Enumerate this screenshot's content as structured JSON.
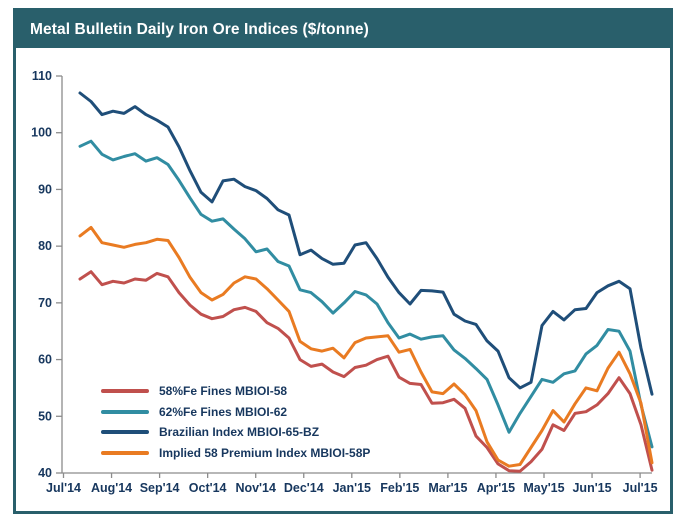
{
  "title": "Metal Bulletin Daily Iron Ore Indices ($/tonne)",
  "colors": {
    "frame_teal": "#295F6B",
    "axis_text": "#17375E",
    "axis_line": "#8C8C8C",
    "background": "#FFFFFF"
  },
  "chart_data": {
    "type": "line",
    "title": "Metal Bulletin Daily Iron Ore Indices ($/tonne)",
    "x_axis": {
      "tick_labels": [
        "Jul'14",
        "Aug'14",
        "Sep'14",
        "Oct'14",
        "Nov'14",
        "Dec'14",
        "Jan'15",
        "Feb'15",
        "Mar'15",
        "Apr'15",
        "May'15",
        "Jun'15",
        "Jul'15"
      ],
      "note": "daily indices, early July 2014 through early July 2015"
    },
    "y_axis": {
      "min": 40,
      "max": 110,
      "tick_step": 10,
      "tick_labels": [
        "40",
        "50",
        "60",
        "70",
        "80",
        "90",
        "100",
        "110"
      ],
      "unit": "$/tonne"
    },
    "grid": false,
    "legend_position": "inside lower-left",
    "sampling": "weekly samples read from chart, 53 points per series (week 0 = ~Jul 7 2014, week 52 = ~Jul 7 2015)",
    "series": [
      {
        "name": "58%Fe Fines MBIOI-58",
        "color": "#C0504D",
        "values": [
          74.2,
          75.5,
          73.2,
          73.8,
          73.5,
          74.2,
          74.0,
          75.2,
          74.6,
          71.8,
          69.6,
          68.0,
          67.2,
          67.6,
          68.8,
          69.2,
          68.5,
          66.5,
          65.5,
          63.8,
          60.0,
          58.8,
          59.2,
          57.8,
          57.0,
          58.6,
          59.0,
          60.0,
          60.6,
          56.9,
          55.8,
          55.6,
          52.3,
          52.4,
          53.0,
          51.4,
          46.5,
          44.5,
          41.6,
          40.4,
          40.3,
          42.0,
          44.2,
          48.5,
          47.5,
          50.5,
          50.8,
          52.0,
          54.0,
          56.8,
          54.0,
          48.5,
          40.5
        ]
      },
      {
        "name": "62%Fe Fines MBIOI-62",
        "color": "#318DA2",
        "values": [
          97.6,
          98.5,
          96.2,
          95.2,
          95.8,
          96.3,
          95.0,
          95.6,
          94.4,
          91.6,
          88.5,
          85.6,
          84.4,
          84.8,
          83.0,
          81.3,
          79.0,
          79.5,
          77.3,
          76.5,
          72.3,
          71.8,
          70.2,
          68.2,
          70.0,
          72.0,
          71.4,
          69.8,
          66.5,
          63.8,
          64.5,
          63.6,
          64.0,
          64.2,
          61.7,
          60.2,
          58.4,
          56.5,
          52.0,
          47.2,
          50.5,
          53.5,
          56.5,
          56.0,
          57.5,
          58.0,
          61.0,
          62.5,
          65.3,
          65.0,
          61.5,
          52.0,
          44.6
        ]
      },
      {
        "name": "Brazilian Index MBIOI-65-BZ",
        "color": "#1F4E79",
        "values": [
          107.0,
          105.5,
          103.2,
          103.8,
          103.4,
          104.6,
          103.2,
          102.2,
          101.0,
          97.5,
          93.3,
          89.5,
          87.8,
          91.5,
          91.8,
          90.5,
          89.8,
          88.4,
          86.4,
          85.5,
          78.5,
          79.3,
          77.8,
          76.8,
          77.0,
          80.2,
          80.6,
          77.8,
          74.5,
          71.8,
          69.8,
          72.2,
          72.1,
          71.9,
          68.0,
          66.8,
          66.2,
          63.3,
          61.5,
          56.8,
          55.0,
          56.0,
          66.0,
          68.5,
          67.0,
          68.8,
          69.0,
          71.8,
          73.0,
          73.8,
          72.5,
          62.0,
          53.9
        ]
      },
      {
        "name": "Implied 58 Premium Index MBIOI-58P",
        "color": "#E97B22",
        "values": [
          81.8,
          83.3,
          80.6,
          80.2,
          79.8,
          80.3,
          80.6,
          81.2,
          81.0,
          78.0,
          74.5,
          71.8,
          70.5,
          71.5,
          73.5,
          74.6,
          74.2,
          72.5,
          70.5,
          68.5,
          63.2,
          61.9,
          61.5,
          62.0,
          60.3,
          63.0,
          63.8,
          64.0,
          64.2,
          61.3,
          61.8,
          57.8,
          54.3,
          54.0,
          55.7,
          53.8,
          51.0,
          45.5,
          42.3,
          41.2,
          41.5,
          44.5,
          47.5,
          51.0,
          49.0,
          52.2,
          55.0,
          54.5,
          58.5,
          61.3,
          57.5,
          52.3,
          41.8
        ]
      }
    ]
  },
  "legend": {
    "items": [
      {
        "label": "58%Fe Fines MBIOI-58"
      },
      {
        "label": "62%Fe Fines MBIOI-62"
      },
      {
        "label": "Brazilian Index MBIOI-65-BZ"
      },
      {
        "label": "Implied 58 Premium Index MBIOI-58P"
      }
    ]
  }
}
